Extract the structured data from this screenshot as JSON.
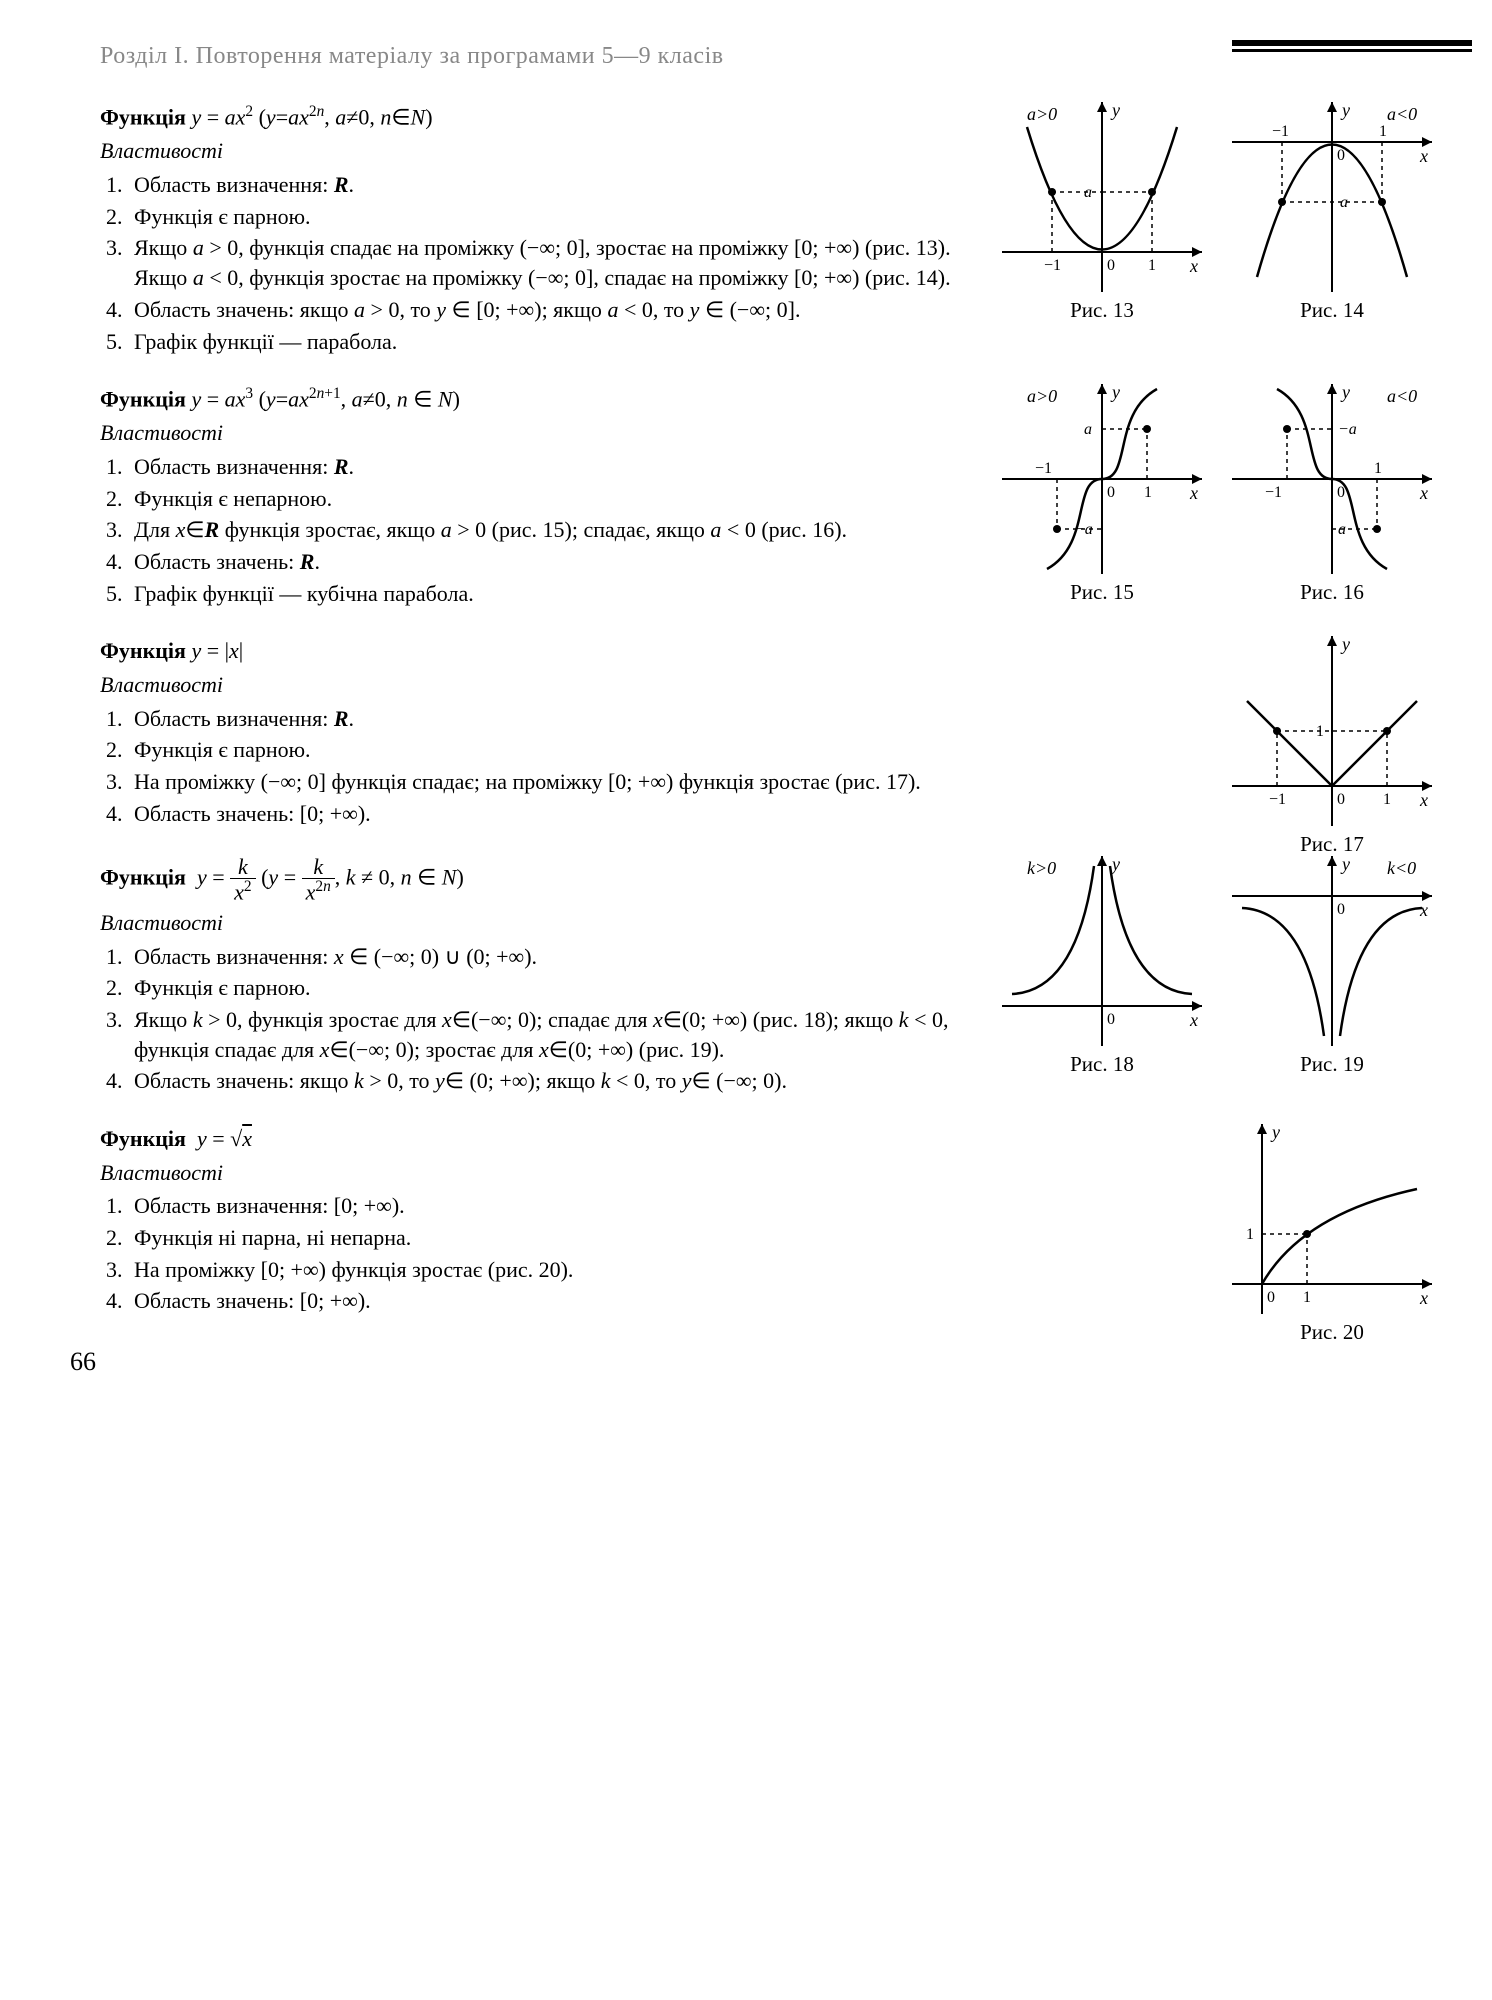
{
  "header": "Розділ І. Повторення матеріалу за програмами 5—9 класів",
  "page_number": "66",
  "style": {
    "text_color": "#000000",
    "bg_color": "#ffffff",
    "header_color": "#888888",
    "font_family": "Times New Roman",
    "body_fontsize": 22,
    "header_fontsize": 24,
    "stroke": "#000000",
    "stroke_width": 2,
    "dash": "4,4"
  },
  "sections": [
    {
      "title_html": "Функція <i>y</i> = <i>ax</i><sup>2</sup> (<i>y</i>=<i>ax</i><sup>2<i>n</i></sup>, <i>a</i>≠0, <i>n</i>∈<i>N</i>)",
      "props_label": "Властивості",
      "props": [
        "Область визначення: <b><i>R</i></b>.",
        "Функція є парною.",
        "Якщо <i>a</i> > 0, функція спадає на проміжку (−∞; 0], зростає на проміжку [0; +∞) (рис. 13). Якщо <i>a</i> < 0, функція зростає на проміжку (−∞; 0], спадає на проміжку [0; +∞) (рис. 14).",
        "Область значень: якщо <i>a</i> > 0, то <i>y</i> ∈ [0; +∞); якщо <i>a</i> < 0, то <i>y</i> ∈ (−∞; 0].",
        "Графік функції — парабола."
      ],
      "figs": [
        {
          "id": "fig13",
          "label": "Рис. 13",
          "annot": "a>0",
          "type": "parabola_up",
          "x_ticks": [
            "−1",
            "1"
          ],
          "y_tick": "a"
        },
        {
          "id": "fig14",
          "label": "Рис. 14",
          "annot": "a<0",
          "type": "parabola_down",
          "x_ticks": [
            "−1",
            "1"
          ],
          "y_tick": "a"
        }
      ]
    },
    {
      "title_html": "Функція <i>y</i> = <i>ax</i><sup>3</sup> (<i>y</i>=<i>ax</i><sup>2<i>n</i>+1</sup>, <i>a</i>≠0, <i>n</i> ∈ <i>N</i>)",
      "props_label": "Властивості",
      "props": [
        "Область визначення: <b><i>R</i></b>.",
        "Функція є непарною.",
        "Для <i>x</i>∈<b><i>R</i></b> функція зростає, якщо <i>a</i> > 0 (рис. 15); спадає, якщо <i>a</i> < 0 (рис. 16).",
        "Область значень: <b><i>R</i></b>.",
        "Графік функції — кубічна парабола."
      ],
      "figs": [
        {
          "id": "fig15",
          "label": "Рис. 15",
          "annot": "a>0",
          "type": "cubic_inc",
          "x_ticks": [
            "−1",
            "1"
          ],
          "y_ticks": [
            "−a",
            "a"
          ]
        },
        {
          "id": "fig16",
          "label": "Рис. 16",
          "annot": "a<0",
          "type": "cubic_dec",
          "x_ticks": [
            "−1",
            "1"
          ],
          "y_ticks": [
            "−a",
            "a"
          ]
        }
      ]
    },
    {
      "title_html": "Функція <i>y</i> = |<i>x</i>|",
      "props_label": "Властивості",
      "props": [
        "Область визначення: <b><i>R</i></b>.",
        "Функція є парною.",
        "На проміжку (−∞; 0] функція спадає; на проміжку [0; +∞) функція зростає (рис. 17).",
        "Область значень: [0; +∞)."
      ],
      "figs": [
        {
          "id": "fig17",
          "label": "Рис. 17",
          "type": "abs",
          "x_ticks": [
            "−1",
            "1"
          ],
          "y_tick": "1"
        }
      ]
    },
    {
      "title_html": "Функція &nbsp;<i>y</i> = <span class='frac'><span class='num'><i>k</i></span><span class='den'><i>x</i><sup>2</sup></span></span> (<i>y</i> = <span class='frac'><span class='num'><i>k</i></span><span class='den'><i>x</i><sup>2<i>n</i></sup></span></span>, <i>k</i> ≠ 0, <i>n</i> ∈ <i>N</i>)",
      "props_label": "Властивості",
      "props": [
        "Область визначення: <i>x</i> ∈ (−∞; 0) ∪ (0; +∞).",
        "Функція є парною.",
        "Якщо <i>k</i> > 0, функція зростає для <i>x</i>∈(−∞; 0); спадає для <i>x</i>∈(0; +∞) (рис. 18); якщо <i>k</i> < 0, функція спадає для <i>x</i>∈(−∞; 0); зростає для <i>x</i>∈(0; +∞) (рис. 19).",
        "Область значень: якщо <i>k</i> > 0, то <i>y</i>∈ (0; +∞); якщо <i>k</i> < 0, то <i>y</i>∈ (−∞; 0)."
      ],
      "figs": [
        {
          "id": "fig18",
          "label": "Рис. 18",
          "annot": "k>0",
          "type": "recip_sq_pos"
        },
        {
          "id": "fig19",
          "label": "Рис. 19",
          "annot": "k<0",
          "type": "recip_sq_neg"
        }
      ]
    },
    {
      "title_html": "Функція &nbsp;<i>y</i> = √<span style='text-decoration:overline'><i>x</i></span>",
      "props_label": "Властивості",
      "props": [
        "Область визначення: [0; +∞).",
        "Функція ні парна, ні непарна.",
        "На проміжку [0; +∞) функція зростає (рис. 20).",
        "Область значень: [0; +∞)."
      ],
      "figs": [
        {
          "id": "fig20",
          "label": "Рис. 20",
          "type": "sqrt",
          "x_tick": "1",
          "y_tick": "1"
        }
      ]
    }
  ]
}
